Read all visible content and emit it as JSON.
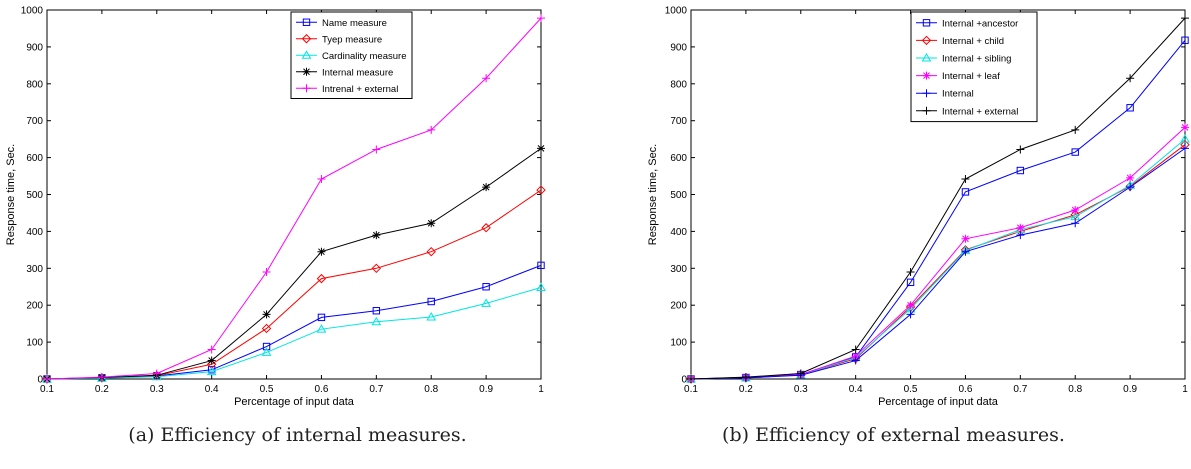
{
  "chart_data": [
    {
      "type": "line",
      "caption": "(a) Efficiency of internal measures.",
      "xlabel": "Percentage of input data",
      "ylabel": "Response time, Sec.",
      "xlim": [
        0.1,
        1
      ],
      "ylim": [
        0,
        1000
      ],
      "x": [
        0.1,
        0.2,
        0.3,
        0.4,
        0.5,
        0.6,
        0.7,
        0.8,
        0.9,
        1
      ],
      "xticks": [
        "0.1",
        "0.2",
        "0.3",
        "0.4",
        "0.5",
        "0.6",
        "0.7",
        "0.8",
        "0.9",
        "1"
      ],
      "yticks": [
        "0",
        "100",
        "200",
        "300",
        "400",
        "500",
        "600",
        "700",
        "800",
        "900",
        "1000"
      ],
      "grid": false,
      "legend_position": "top-right",
      "series": [
        {
          "name": "Name measure",
          "color": "#0000ff",
          "marker": "square",
          "values": [
            0,
            3,
            8,
            25,
            88,
            167,
            185,
            210,
            250,
            308
          ]
        },
        {
          "name": "Tyep measure",
          "color": "#ff0000",
          "marker": "diamond",
          "values": [
            0,
            3,
            9,
            40,
            137,
            272,
            300,
            345,
            410,
            512
          ]
        },
        {
          "name": "Cardinality measure",
          "color": "#00e5e5",
          "marker": "triangle",
          "values": [
            0,
            2,
            6,
            20,
            72,
            135,
            155,
            168,
            205,
            248
          ]
        },
        {
          "name": "Internal measure",
          "color": "#000000",
          "marker": "star",
          "values": [
            0,
            4,
            10,
            50,
            175,
            345,
            390,
            422,
            520,
            625
          ]
        },
        {
          "name": "Intrenal + external",
          "color": "#ff00ff",
          "marker": "plus",
          "values": [
            0,
            5,
            15,
            80,
            290,
            542,
            622,
            675,
            815,
            978
          ]
        }
      ]
    },
    {
      "type": "line",
      "caption": "(b) Efficiency of external measures.",
      "xlabel": "Percentage of input data",
      "ylabel": "Response time, Sec.",
      "xlim": [
        0.1,
        1
      ],
      "ylim": [
        0,
        1000
      ],
      "x": [
        0.1,
        0.2,
        0.3,
        0.4,
        0.5,
        0.6,
        0.7,
        0.8,
        0.9,
        1
      ],
      "xticks": [
        "0.1",
        "0.2",
        "0.3",
        "0.4",
        "0.5",
        "0.6",
        "0.7",
        "0.8",
        "0.9",
        "1"
      ],
      "yticks": [
        "0",
        "100",
        "200",
        "300",
        "400",
        "500",
        "600",
        "700",
        "800",
        "900",
        "1000"
      ],
      "grid": false,
      "legend_position": "top-left",
      "series": [
        {
          "name": "Internal +ancestor",
          "color": "#0000ff",
          "marker": "square",
          "values": [
            0,
            4,
            12,
            60,
            262,
            507,
            565,
            615,
            735,
            918
          ]
        },
        {
          "name": "Internal + child",
          "color": "#ff0000",
          "marker": "diamond",
          "values": [
            0,
            3,
            11,
            55,
            195,
            350,
            400,
            445,
            522,
            635
          ]
        },
        {
          "name": "Internal + sibling",
          "color": "#00e5e5",
          "marker": "triangle",
          "values": [
            0,
            3,
            11,
            58,
            190,
            348,
            405,
            440,
            525,
            650
          ]
        },
        {
          "name": "Internal + leaf",
          "color": "#ff00ff",
          "marker": "star",
          "values": [
            0,
            4,
            12,
            62,
            200,
            380,
            410,
            458,
            545,
            682
          ]
        },
        {
          "name": "Internal",
          "color": "#0000ff",
          "marker": "plus",
          "values": [
            0,
            3,
            10,
            50,
            175,
            345,
            390,
            422,
            520,
            625
          ]
        },
        {
          "name": "Internal + external",
          "color": "#000000",
          "marker": "plus",
          "values": [
            0,
            5,
            15,
            80,
            290,
            542,
            622,
            675,
            815,
            978
          ]
        }
      ]
    }
  ]
}
